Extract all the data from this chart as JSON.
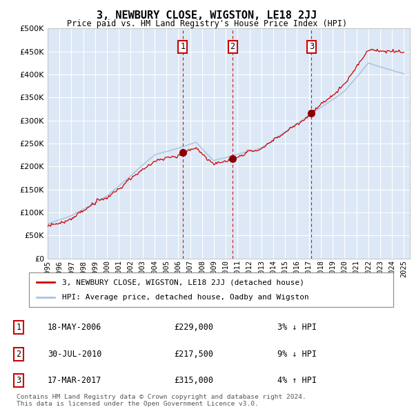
{
  "title": "3, NEWBURY CLOSE, WIGSTON, LE18 2JJ",
  "subtitle": "Price paid vs. HM Land Registry's House Price Index (HPI)",
  "ylim": [
    0,
    500000
  ],
  "yticks": [
    0,
    50000,
    100000,
    150000,
    200000,
    250000,
    300000,
    350000,
    400000,
    450000,
    500000
  ],
  "ytick_labels": [
    "£0",
    "£50K",
    "£100K",
    "£150K",
    "£200K",
    "£250K",
    "£300K",
    "£350K",
    "£400K",
    "£450K",
    "£500K"
  ],
  "hpi_color": "#a8c4e0",
  "price_color": "#cc0000",
  "background_color": "#ffffff",
  "plot_bg_color": "#dce8f5",
  "grid_color": "#ffffff",
  "legend_label_price": "3, NEWBURY CLOSE, WIGSTON, LE18 2JJ (detached house)",
  "legend_label_hpi": "HPI: Average price, detached house, Oadby and Wigston",
  "transactions": [
    {
      "num": 1,
      "date": "18-MAY-2006",
      "price": 229000,
      "price_str": "£229,000",
      "pct": "3%",
      "dir": "↓",
      "year": 2006.38
    },
    {
      "num": 2,
      "date": "30-JUL-2010",
      "price": 217500,
      "price_str": "£217,500",
      "pct": "9%",
      "dir": "↓",
      "year": 2010.58
    },
    {
      "num": 3,
      "date": "17-MAR-2017",
      "price": 315000,
      "price_str": "£315,000",
      "pct": "4%",
      "dir": "↑",
      "year": 2017.21
    }
  ],
  "footnote1": "Contains HM Land Registry data © Crown copyright and database right 2024.",
  "footnote2": "This data is licensed under the Open Government Licence v3.0.",
  "xmin": 1995,
  "xmax": 2025.5,
  "seed": 12345
}
